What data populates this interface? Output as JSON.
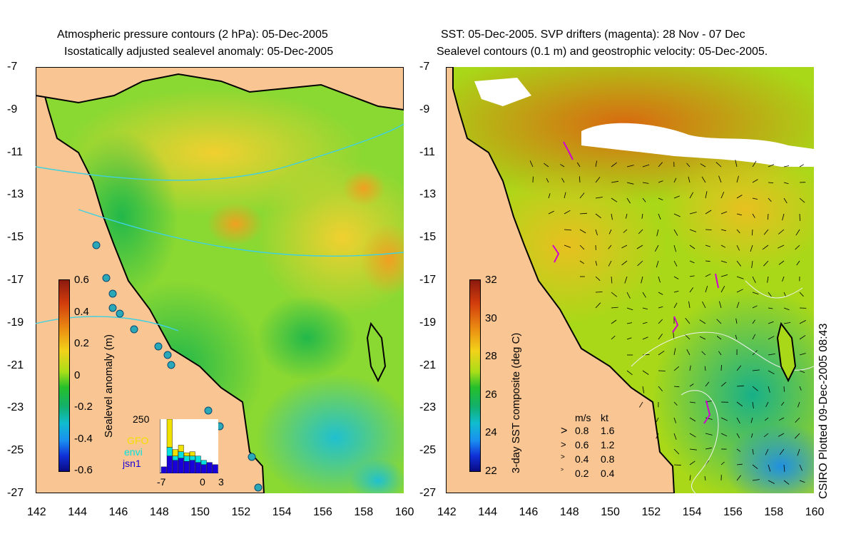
{
  "left_panel": {
    "title_line1": "Atmospheric pressure contours (2 hPa): 05-Dec-2005",
    "title_line2": "Isostatically adjusted sealevel anomaly: 05-Dec-2005",
    "colorbar_label": "Sealevel anomaly (m)",
    "colorbar_ticks": [
      "0.6",
      "0.4",
      "0.2",
      "0",
      "-0.2",
      "-0.4",
      "-0.6"
    ],
    "inset": {
      "ymax_label": "250",
      "legend": [
        {
          "name": "GFO",
          "color": "#f0e000"
        },
        {
          "name": "envi",
          "color": "#00e0e0"
        },
        {
          "name": "jsn1",
          "color": "#1a00d8"
        }
      ],
      "x_ticks": [
        "-7",
        "0",
        "3"
      ],
      "bars": [
        {
          "jsn1": 30,
          "envi": 0,
          "GFO": 0
        },
        {
          "jsn1": 80,
          "envi": 40,
          "GFO": 130
        },
        {
          "jsn1": 60,
          "envi": 20,
          "GFO": 30
        },
        {
          "jsn1": 70,
          "envi": 30,
          "GFO": 30
        },
        {
          "jsn1": 55,
          "envi": 25,
          "GFO": 15
        },
        {
          "jsn1": 60,
          "envi": 20,
          "GFO": 20
        },
        {
          "jsn1": 50,
          "envi": 30,
          "GFO": 0
        },
        {
          "jsn1": 40,
          "envi": 20,
          "GFO": 0
        },
        {
          "jsn1": 50,
          "envi": 0,
          "GFO": 0
        },
        {
          "jsn1": 40,
          "envi": 0,
          "GFO": 0
        }
      ]
    }
  },
  "right_panel": {
    "title_line1": "SST: 05-Dec-2005. SVP drifters (magenta): 28 Nov - 07 Dec",
    "title_line2": "Sealevel contours (0.1 m) and geostrophic velocity: 05-Dec-2005.",
    "colorbar_label": "3-day SST composite (deg C)",
    "colorbar_ticks": [
      "32",
      "30",
      "28",
      "26",
      "24",
      "22"
    ],
    "velocity_legend": {
      "header_ms": "m/s",
      "header_kt": "kt",
      "rows": [
        {
          "ms": "0.8",
          "kt": "1.6"
        },
        {
          "ms": "0.6",
          "kt": "1.2"
        },
        {
          "ms": "0.4",
          "kt": "0.8"
        },
        {
          "ms": "0.2",
          "kt": "0.4"
        }
      ]
    },
    "credit": "CSIRO Plotted 09-Dec-2005 08:43"
  },
  "axes": {
    "y_ticks": [
      "-7",
      "-9",
      "-11",
      "-13",
      "-15",
      "-17",
      "-19",
      "-21",
      "-23",
      "-25",
      "-27"
    ],
    "x_ticks": [
      "142",
      "144",
      "146",
      "148",
      "150",
      "152",
      "154",
      "156",
      "158",
      "160"
    ]
  },
  "colors": {
    "land": "#f9c593",
    "coast": "#000000",
    "pressure_contour": "#40d0e0",
    "drifter": "#d000d0"
  }
}
